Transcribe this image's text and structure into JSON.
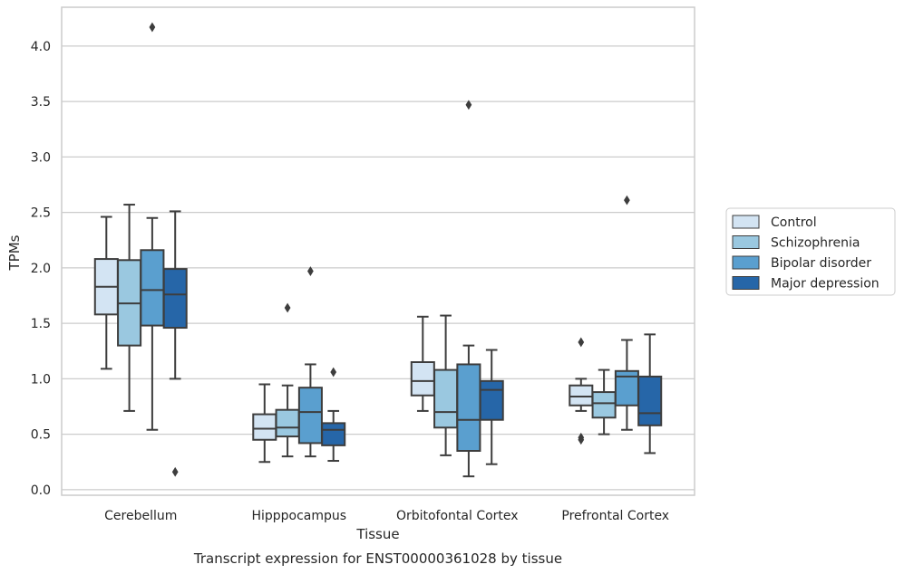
{
  "chart_data": {
    "type": "box",
    "title": "",
    "caption": "Transcript expression for ENST00000361028 by tissue",
    "xlabel": "Tissue",
    "ylabel": "TPMs",
    "ylim": [
      -0.05,
      4.35
    ],
    "yticks": [
      "0.0",
      "0.5",
      "1.0",
      "1.5",
      "2.0",
      "2.5",
      "3.0",
      "3.5",
      "4.0"
    ],
    "grid": "horizontal",
    "legend_position": "right",
    "categories": [
      "Cerebellum",
      "Hipppocampus",
      "Orbitofontal Cortex",
      "Prefrontal Cortex"
    ],
    "series": [
      {
        "name": "Control",
        "color": "#d3e4f3",
        "boxes": [
          {
            "whisker_low": 1.09,
            "q1": 1.58,
            "median": 1.83,
            "q3": 2.08,
            "whisker_high": 2.46,
            "outliers": []
          },
          {
            "whisker_low": 0.25,
            "q1": 0.45,
            "median": 0.55,
            "q3": 0.68,
            "whisker_high": 0.95,
            "outliers": []
          },
          {
            "whisker_low": 0.71,
            "q1": 0.85,
            "median": 0.98,
            "q3": 1.15,
            "whisker_high": 1.56,
            "outliers": []
          },
          {
            "whisker_low": 0.71,
            "q1": 0.76,
            "median": 0.84,
            "q3": 0.94,
            "whisker_high": 1.0,
            "outliers": [
              1.33,
              0.47,
              0.45
            ]
          }
        ]
      },
      {
        "name": "Schizophrenia",
        "color": "#9ac8e0",
        "boxes": [
          {
            "whisker_low": 0.71,
            "q1": 1.3,
            "median": 1.68,
            "q3": 2.07,
            "whisker_high": 2.57,
            "outliers": []
          },
          {
            "whisker_low": 0.3,
            "q1": 0.48,
            "median": 0.56,
            "q3": 0.72,
            "whisker_high": 0.94,
            "outliers": [
              1.64
            ]
          },
          {
            "whisker_low": 0.31,
            "q1": 0.56,
            "median": 0.7,
            "q3": 1.08,
            "whisker_high": 1.57,
            "outliers": []
          },
          {
            "whisker_low": 0.5,
            "q1": 0.65,
            "median": 0.78,
            "q3": 0.88,
            "whisker_high": 1.08,
            "outliers": []
          }
        ]
      },
      {
        "name": "Bipolar disorder",
        "color": "#5a9fcf",
        "boxes": [
          {
            "whisker_low": 0.54,
            "q1": 1.48,
            "median": 1.8,
            "q3": 2.16,
            "whisker_high": 2.45,
            "outliers": [
              4.17
            ]
          },
          {
            "whisker_low": 0.3,
            "q1": 0.42,
            "median": 0.7,
            "q3": 0.92,
            "whisker_high": 1.13,
            "outliers": [
              1.97
            ]
          },
          {
            "whisker_low": 0.12,
            "q1": 0.35,
            "median": 0.63,
            "q3": 1.13,
            "whisker_high": 1.3,
            "outliers": [
              3.47
            ]
          },
          {
            "whisker_low": 0.54,
            "q1": 0.76,
            "median": 1.02,
            "q3": 1.07,
            "whisker_high": 1.35,
            "outliers": [
              2.61
            ]
          }
        ]
      },
      {
        "name": "Major depression",
        "color": "#2666a8",
        "boxes": [
          {
            "whisker_low": 1.0,
            "q1": 1.46,
            "median": 1.76,
            "q3": 1.99,
            "whisker_high": 2.51,
            "outliers": [
              0.16
            ]
          },
          {
            "whisker_low": 0.26,
            "q1": 0.4,
            "median": 0.54,
            "q3": 0.6,
            "whisker_high": 0.71,
            "outliers": [
              1.06
            ]
          },
          {
            "whisker_low": 0.23,
            "q1": 0.63,
            "median": 0.9,
            "q3": 0.98,
            "whisker_high": 1.26,
            "outliers": []
          },
          {
            "whisker_low": 0.33,
            "q1": 0.58,
            "median": 0.69,
            "q3": 1.02,
            "whisker_high": 1.4,
            "outliers": []
          }
        ]
      }
    ]
  }
}
